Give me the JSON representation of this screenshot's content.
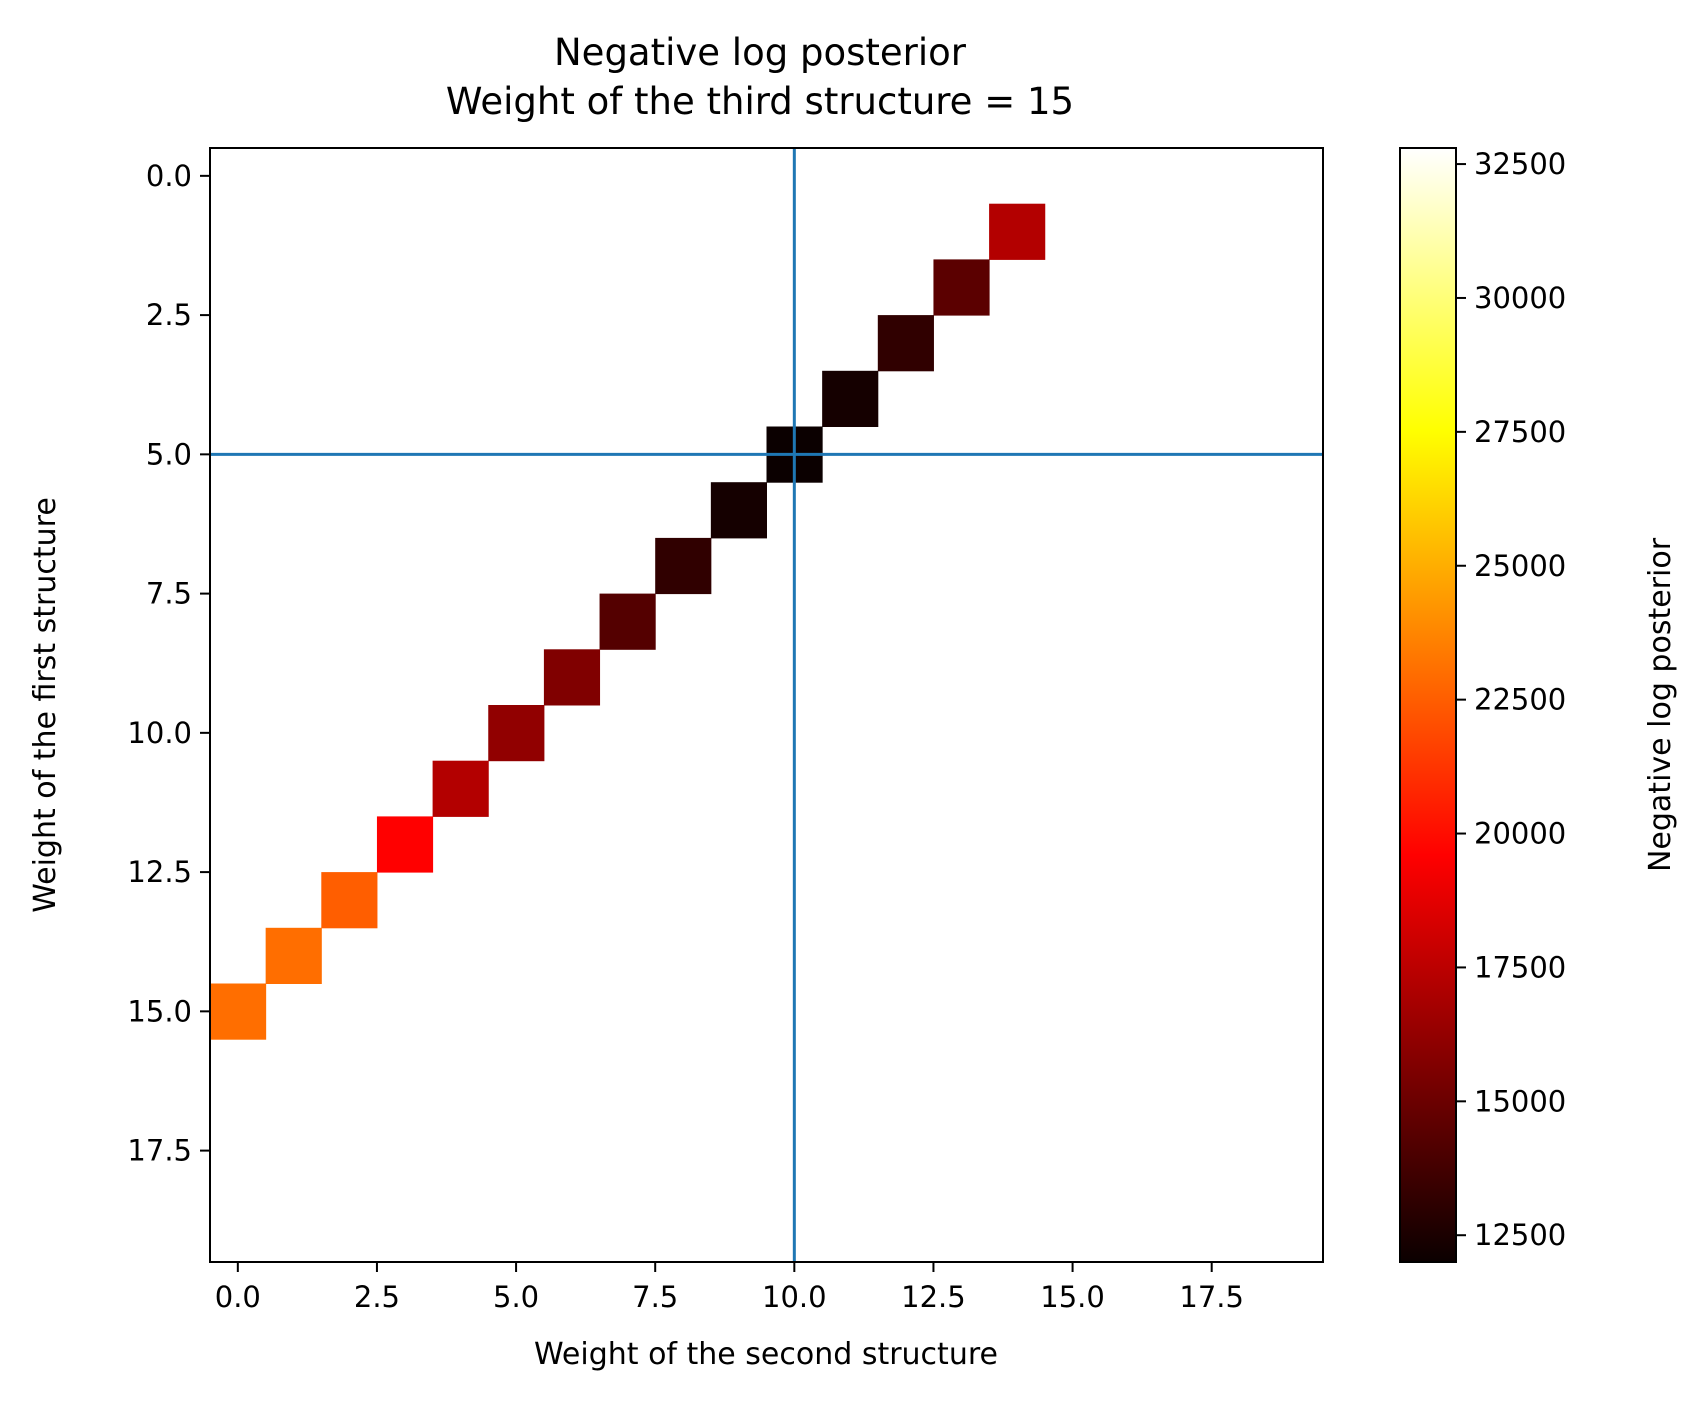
{
  "chart_data": {
    "type": "heatmap",
    "title": "Negative log posterior",
    "subtitle": "Weight of the third structure = 15",
    "xlabel": "Weight of the second structure",
    "ylabel": "Weight of the first structure",
    "colorbar_label": "Negative log posterior",
    "colormap": "hot",
    "grid": false,
    "y_axis_inverted": true,
    "xlim": [
      -0.5,
      19.5
    ],
    "ylim": [
      -0.5,
      19.5
    ],
    "x_ticks": [
      0.0,
      2.5,
      5.0,
      7.5,
      10.0,
      12.5,
      15.0,
      17.5
    ],
    "x_tick_labels": [
      "0.0",
      "2.5",
      "5.0",
      "7.5",
      "10.0",
      "12.5",
      "15.0",
      "17.5"
    ],
    "y_ticks": [
      0.0,
      2.5,
      5.0,
      7.5,
      10.0,
      12.5,
      15.0,
      17.5
    ],
    "y_tick_labels": [
      "0.0",
      "2.5",
      "5.0",
      "7.5",
      "10.0",
      "12.5",
      "15.0",
      "17.5"
    ],
    "colorbar_range": [
      12000,
      32800
    ],
    "colorbar_ticks": [
      12500,
      15000,
      17500,
      20000,
      22500,
      25000,
      27500,
      30000,
      32500
    ],
    "colorbar_tick_labels": [
      "12500",
      "15000",
      "17500",
      "20000",
      "22500",
      "25000",
      "27500",
      "30000",
      "32500"
    ],
    "reference_lines": {
      "x": 10,
      "y": 5,
      "color": "#1f77b4"
    },
    "cells": [
      {
        "x": 14,
        "y": 1,
        "value": 17000
      },
      {
        "x": 13,
        "y": 2,
        "value": 14400
      },
      {
        "x": 12,
        "y": 3,
        "value": 13100
      },
      {
        "x": 11,
        "y": 4,
        "value": 12300
      },
      {
        "x": 10,
        "y": 5,
        "value": 12000
      },
      {
        "x": 9,
        "y": 6,
        "value": 12300
      },
      {
        "x": 8,
        "y": 7,
        "value": 13100
      },
      {
        "x": 7,
        "y": 8,
        "value": 14200
      },
      {
        "x": 6,
        "y": 9,
        "value": 15500
      },
      {
        "x": 5,
        "y": 10,
        "value": 16000
      },
      {
        "x": 4,
        "y": 11,
        "value": 17000
      },
      {
        "x": 3,
        "y": 12,
        "value": 19500
      },
      {
        "x": 2,
        "y": 13,
        "value": 22500
      },
      {
        "x": 1,
        "y": 14,
        "value": 23000
      },
      {
        "x": 0,
        "y": 15,
        "value": 23000
      }
    ]
  }
}
